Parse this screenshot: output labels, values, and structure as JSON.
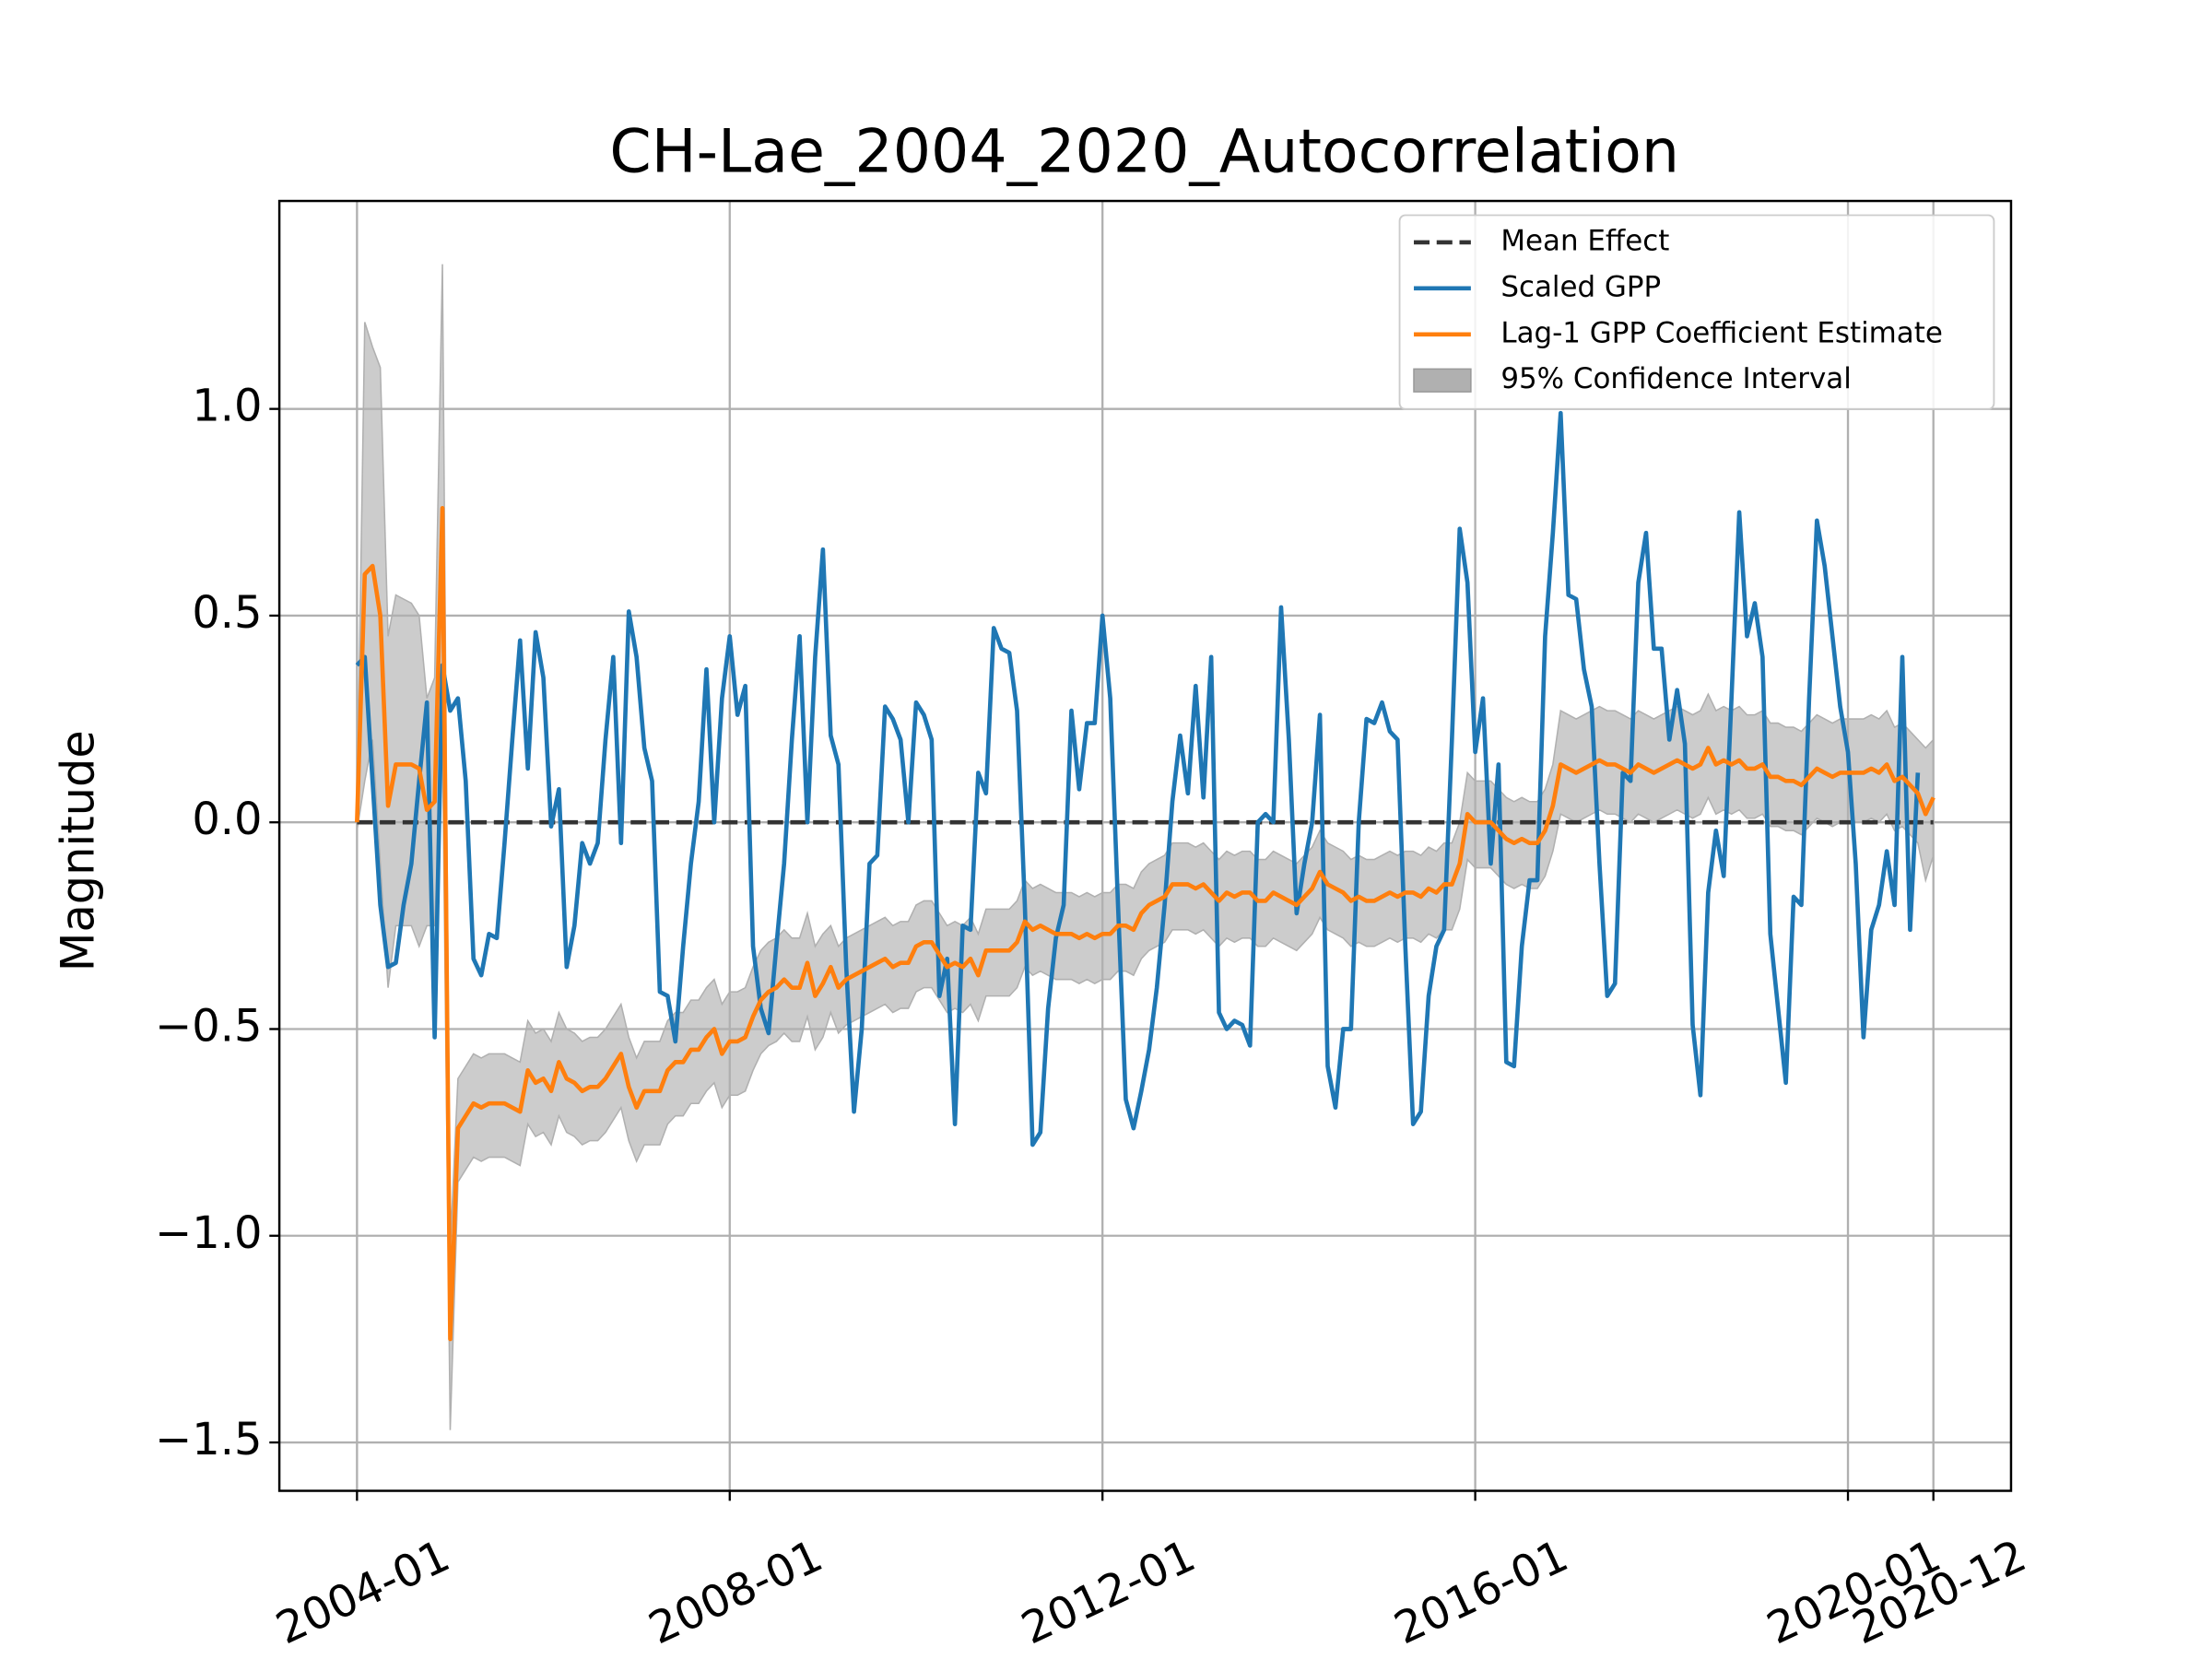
{
  "chart_data": {
    "type": "line",
    "title": "CH-Lae_2004_2020_Autocorrelation",
    "ylabel": "Magnitude",
    "grid": true,
    "legend": "upper right",
    "xlim": [
      "2003-03",
      "2021-10"
    ],
    "xticks": [
      "2004-01",
      "2008-01",
      "2012-01",
      "2016-01",
      "2020-01",
      "2020-12"
    ],
    "ylim": [
      -1.617,
      1.503
    ],
    "yticks": [
      {
        "value": -1.5,
        "label": "−1.5"
      },
      {
        "value": -1,
        "label": "−1.0"
      },
      {
        "value": -0.5,
        "label": "−0.5"
      },
      {
        "value": 0,
        "label": "0.0"
      },
      {
        "value": 0.5,
        "label": "0.5"
      },
      {
        "value": 1,
        "label": "1.0"
      }
    ],
    "x": [
      "2004-01",
      "2004-02",
      "2004-03",
      "2004-04",
      "2004-05",
      "2004-06",
      "2004-07",
      "2004-08",
      "2004-09",
      "2004-10",
      "2004-11",
      "2004-12",
      "2005-01",
      "2005-02",
      "2005-03",
      "2005-04",
      "2005-05",
      "2005-06",
      "2005-07",
      "2005-08",
      "2005-09",
      "2005-10",
      "2005-11",
      "2005-12",
      "2006-01",
      "2006-02",
      "2006-03",
      "2006-04",
      "2006-05",
      "2006-06",
      "2006-07",
      "2006-08",
      "2006-09",
      "2006-10",
      "2006-11",
      "2006-12",
      "2007-01",
      "2007-02",
      "2007-03",
      "2007-04",
      "2007-05",
      "2007-06",
      "2007-07",
      "2007-08",
      "2007-09",
      "2007-10",
      "2007-11",
      "2007-12",
      "2008-01",
      "2008-02",
      "2008-03",
      "2008-04",
      "2008-05",
      "2008-06",
      "2008-07",
      "2008-08",
      "2008-09",
      "2008-10",
      "2008-11",
      "2008-12",
      "2009-01",
      "2009-02",
      "2009-03",
      "2009-04",
      "2009-05",
      "2009-06",
      "2009-07",
      "2009-08",
      "2009-09",
      "2009-10",
      "2009-11",
      "2009-12",
      "2010-01",
      "2010-02",
      "2010-03",
      "2010-04",
      "2010-05",
      "2010-06",
      "2010-07",
      "2010-08",
      "2010-09",
      "2010-10",
      "2010-11",
      "2010-12",
      "2011-01",
      "2011-02",
      "2011-03",
      "2011-04",
      "2011-05",
      "2011-06",
      "2011-07",
      "2011-08",
      "2011-09",
      "2011-10",
      "2011-11",
      "2011-12",
      "2012-01",
      "2012-02",
      "2012-03",
      "2012-04",
      "2012-05",
      "2012-06",
      "2012-07",
      "2012-08",
      "2012-09",
      "2012-10",
      "2012-11",
      "2012-12",
      "2013-01",
      "2013-02",
      "2013-03",
      "2013-04",
      "2013-05",
      "2013-06",
      "2013-07",
      "2013-08",
      "2013-09",
      "2013-10",
      "2013-11",
      "2013-12",
      "2014-01",
      "2014-02",
      "2014-03",
      "2014-04",
      "2014-05",
      "2014-06",
      "2014-07",
      "2014-08",
      "2014-09",
      "2014-10",
      "2014-11",
      "2014-12",
      "2015-01",
      "2015-02",
      "2015-03",
      "2015-04",
      "2015-05",
      "2015-06",
      "2015-07",
      "2015-08",
      "2015-09",
      "2015-10",
      "2015-11",
      "2015-12",
      "2016-01",
      "2016-02",
      "2016-03",
      "2016-04",
      "2016-05",
      "2016-06",
      "2016-07",
      "2016-08",
      "2016-09",
      "2016-10",
      "2016-11",
      "2016-12",
      "2017-01",
      "2017-02",
      "2017-03",
      "2017-04",
      "2017-05",
      "2017-06",
      "2017-07",
      "2017-08",
      "2017-09",
      "2017-10",
      "2017-11",
      "2017-12",
      "2018-01",
      "2018-02",
      "2018-03",
      "2018-04",
      "2018-05",
      "2018-06",
      "2018-07",
      "2018-08",
      "2018-09",
      "2018-10",
      "2018-11",
      "2018-12",
      "2019-01",
      "2019-02",
      "2019-03",
      "2019-04",
      "2019-05",
      "2019-06",
      "2019-07",
      "2019-08",
      "2019-09",
      "2019-10",
      "2019-11",
      "2019-12",
      "2020-01",
      "2020-02",
      "2020-03",
      "2020-04",
      "2020-05",
      "2020-06",
      "2020-07",
      "2020-08",
      "2020-09",
      "2020-10",
      "2020-11",
      "2020-12"
    ],
    "mean_effect": {
      "name": "Mean Effect",
      "color": "#333333",
      "value": 0
    },
    "series": [
      {
        "name": "Scaled GPP",
        "color": "#1f77b4",
        "values": [
          0.38,
          0.4,
          0.1,
          -0.2,
          -0.35,
          -0.34,
          -0.2,
          -0.1,
          0.1,
          0.29,
          -0.52,
          0.38,
          0.27,
          0.3,
          0.1,
          -0.33,
          -0.37,
          -0.27,
          -0.28,
          -0.05,
          0.2,
          0.44,
          0.13,
          0.46,
          0.35,
          -0.01,
          0.08,
          -0.35,
          -0.25,
          -0.05,
          -0.1,
          -0.05,
          0.2,
          0.4,
          -0.05,
          0.51,
          0.4,
          0.18,
          0.1,
          -0.41,
          -0.42,
          -0.53,
          -0.3,
          -0.1,
          0.05,
          0.37,
          0.0,
          0.3,
          0.45,
          0.26,
          0.33,
          -0.3,
          -0.45,
          -0.51,
          -0.3,
          -0.1,
          0.2,
          0.45,
          0.0,
          0.4,
          0.66,
          0.21,
          0.14,
          -0.35,
          -0.7,
          -0.5,
          -0.1,
          -0.08,
          0.28,
          0.25,
          0.2,
          0.0,
          0.29,
          0.26,
          0.2,
          -0.42,
          -0.33,
          -0.73,
          -0.25,
          -0.26,
          0.12,
          0.07,
          0.47,
          0.42,
          0.41,
          0.27,
          -0.2,
          -0.78,
          -0.75,
          -0.45,
          -0.28,
          -0.2,
          0.27,
          0.08,
          0.24,
          0.24,
          0.5,
          0.3,
          -0.2,
          -0.67,
          -0.74,
          -0.65,
          -0.55,
          -0.4,
          -0.2,
          0.05,
          0.21,
          0.07,
          0.33,
          0.06,
          0.4,
          -0.46,
          -0.5,
          -0.48,
          -0.49,
          -0.54,
          0.0,
          0.02,
          0.0,
          0.52,
          0.2,
          -0.22,
          -0.1,
          0.0,
          0.26,
          -0.59,
          -0.69,
          -0.5,
          -0.5,
          0.0,
          0.25,
          0.24,
          0.29,
          0.22,
          0.2,
          -0.3,
          -0.73,
          -0.7,
          -0.42,
          -0.3,
          -0.26,
          0.2,
          0.71,
          0.58,
          0.17,
          0.3,
          -0.1,
          0.14,
          -0.58,
          -0.59,
          -0.3,
          -0.14,
          -0.14,
          0.45,
          0.7,
          0.99,
          0.55,
          0.54,
          0.37,
          0.28,
          -0.1,
          -0.42,
          -0.39,
          0.12,
          0.1,
          0.58,
          0.7,
          0.42,
          0.42,
          0.2,
          0.32,
          0.19,
          -0.49,
          -0.66,
          -0.17,
          -0.02,
          -0.13,
          0.3,
          0.75,
          0.45,
          0.53,
          0.4,
          -0.27,
          -0.45,
          -0.63,
          -0.18,
          -0.2,
          0.3,
          0.73,
          0.62,
          0.45,
          0.28,
          0.17,
          -0.1,
          -0.52,
          -0.26,
          -0.2,
          -0.07,
          -0.2,
          0.4,
          -0.26,
          0.12,
          null,
          null
        ]
      },
      {
        "name": "Lag-1 GPP Coefficient Estimate",
        "color": "#ff7f0e",
        "values": [
          0.0,
          0.6,
          0.62,
          0.5,
          0.04,
          0.14,
          0.14,
          0.14,
          0.13,
          0.03,
          0.05,
          0.76,
          -1.25,
          -0.74,
          -0.71,
          -0.68,
          -0.69,
          -0.68,
          -0.68,
          -0.68,
          -0.69,
          -0.7,
          -0.6,
          -0.63,
          -0.62,
          -0.65,
          -0.58,
          -0.62,
          -0.63,
          -0.65,
          -0.64,
          -0.64,
          -0.62,
          -0.59,
          -0.56,
          -0.64,
          -0.69,
          -0.65,
          -0.65,
          -0.65,
          -0.6,
          -0.58,
          -0.58,
          -0.55,
          -0.55,
          -0.52,
          -0.5,
          -0.56,
          -0.53,
          -0.53,
          -0.52,
          -0.47,
          -0.43,
          -0.41,
          -0.4,
          -0.38,
          -0.4,
          -0.4,
          -0.34,
          -0.42,
          -0.39,
          -0.35,
          -0.4,
          -0.38,
          -0.37,
          -0.36,
          -0.35,
          -0.34,
          -0.33,
          -0.35,
          -0.34,
          -0.34,
          -0.3,
          -0.29,
          -0.29,
          -0.32,
          -0.35,
          -0.34,
          -0.35,
          -0.33,
          -0.37,
          -0.31,
          -0.31,
          -0.31,
          -0.31,
          -0.29,
          -0.24,
          -0.26,
          -0.25,
          -0.26,
          -0.27,
          -0.27,
          -0.27,
          -0.28,
          -0.27,
          -0.28,
          -0.27,
          -0.27,
          -0.25,
          -0.25,
          -0.26,
          -0.22,
          -0.2,
          -0.19,
          -0.18,
          -0.15,
          -0.15,
          -0.15,
          -0.16,
          -0.15,
          -0.17,
          -0.19,
          -0.17,
          -0.18,
          -0.17,
          -0.17,
          -0.19,
          -0.19,
          -0.17,
          -0.18,
          -0.19,
          -0.2,
          -0.18,
          -0.16,
          -0.12,
          -0.15,
          -0.16,
          -0.17,
          -0.19,
          -0.18,
          -0.19,
          -0.19,
          -0.18,
          -0.17,
          -0.18,
          -0.17,
          -0.17,
          -0.18,
          -0.16,
          -0.17,
          -0.15,
          -0.15,
          -0.1,
          0.02,
          0.0,
          0.0,
          0.0,
          -0.02,
          -0.04,
          -0.05,
          -0.04,
          -0.05,
          -0.05,
          -0.02,
          0.04,
          0.14,
          0.13,
          0.12,
          0.13,
          0.14,
          0.15,
          0.14,
          0.14,
          0.13,
          0.12,
          0.14,
          0.13,
          0.12,
          0.13,
          0.14,
          0.15,
          0.14,
          0.13,
          0.14,
          0.18,
          0.14,
          0.15,
          0.14,
          0.15,
          0.13,
          0.13,
          0.14,
          0.11,
          0.11,
          0.1,
          0.1,
          0.09,
          0.11,
          0.13,
          0.12,
          0.11,
          0.12,
          0.12,
          0.12,
          0.12,
          0.13,
          0.12,
          0.14,
          0.1,
          0.11,
          0.09,
          0.07,
          0.02,
          0.06
        ]
      }
    ],
    "confidence_band": {
      "name": "95% Confidence Interval",
      "color": "#b0b0b0",
      "lower": [
        -0.02,
        0.1,
        0.2,
        -0.1,
        -0.4,
        -0.25,
        -0.25,
        -0.25,
        -0.3,
        -0.25,
        -0.25,
        0.2,
        -1.47,
        -0.87,
        -0.84,
        -0.81,
        -0.82,
        -0.81,
        -0.81,
        -0.81,
        -0.82,
        -0.83,
        -0.73,
        -0.76,
        -0.75,
        -0.78,
        -0.71,
        -0.75,
        -0.76,
        -0.78,
        -0.77,
        -0.77,
        -0.75,
        -0.72,
        -0.69,
        -0.77,
        -0.82,
        -0.78,
        -0.78,
        -0.78,
        -0.73,
        -0.71,
        -0.71,
        -0.68,
        -0.68,
        -0.65,
        -0.63,
        -0.69,
        -0.66,
        -0.66,
        -0.65,
        -0.6,
        -0.56,
        -0.54,
        -0.53,
        -0.51,
        -0.53,
        -0.53,
        -0.47,
        -0.55,
        -0.52,
        -0.46,
        -0.51,
        -0.49,
        -0.48,
        -0.47,
        -0.46,
        -0.45,
        -0.44,
        -0.46,
        -0.45,
        -0.45,
        -0.41,
        -0.4,
        -0.4,
        -0.43,
        -0.46,
        -0.45,
        -0.46,
        -0.44,
        -0.48,
        -0.42,
        -0.42,
        -0.42,
        -0.42,
        -0.4,
        -0.35,
        -0.37,
        -0.36,
        -0.37,
        -0.38,
        -0.38,
        -0.38,
        -0.39,
        -0.38,
        -0.39,
        -0.38,
        -0.38,
        -0.36,
        -0.36,
        -0.37,
        -0.33,
        -0.31,
        -0.3,
        -0.29,
        -0.26,
        -0.26,
        -0.26,
        -0.27,
        -0.26,
        -0.28,
        -0.3,
        -0.28,
        -0.29,
        -0.28,
        -0.28,
        -0.3,
        -0.3,
        -0.28,
        -0.29,
        -0.3,
        -0.31,
        -0.29,
        -0.27,
        -0.23,
        -0.26,
        -0.27,
        -0.28,
        -0.3,
        -0.29,
        -0.3,
        -0.3,
        -0.29,
        -0.28,
        -0.29,
        -0.28,
        -0.28,
        -0.29,
        -0.27,
        -0.28,
        -0.26,
        -0.26,
        -0.21,
        -0.09,
        -0.11,
        -0.11,
        -0.11,
        -0.13,
        -0.15,
        -0.16,
        -0.15,
        -0.16,
        -0.16,
        -0.13,
        -0.07,
        0.02,
        0.01,
        0.0,
        0.01,
        0.02,
        0.03,
        0.02,
        0.02,
        0.01,
        0.0,
        0.02,
        0.01,
        0.0,
        0.01,
        0.02,
        0.03,
        0.02,
        0.01,
        0.02,
        0.06,
        0.02,
        0.03,
        0.02,
        0.03,
        0.01,
        0.01,
        0.02,
        -0.01,
        -0.01,
        -0.02,
        -0.02,
        -0.03,
        -0.01,
        0.01,
        0.0,
        -0.01,
        0.0,
        0.0,
        0.0,
        0.0,
        0.01,
        0.0,
        0.02,
        -0.02,
        -0.01,
        -0.03,
        -0.05,
        -0.14,
        -0.08
      ],
      "upper": [
        0.02,
        1.21,
        1.15,
        1.1,
        0.45,
        0.55,
        0.54,
        0.53,
        0.5,
        0.3,
        0.35,
        1.35,
        -1.03,
        -0.62,
        -0.59,
        -0.56,
        -0.57,
        -0.56,
        -0.56,
        -0.56,
        -0.57,
        -0.58,
        -0.48,
        -0.51,
        -0.5,
        -0.53,
        -0.46,
        -0.5,
        -0.51,
        -0.53,
        -0.52,
        -0.52,
        -0.5,
        -0.47,
        -0.44,
        -0.52,
        -0.57,
        -0.53,
        -0.53,
        -0.53,
        -0.48,
        -0.46,
        -0.46,
        -0.43,
        -0.43,
        -0.4,
        -0.38,
        -0.44,
        -0.41,
        -0.41,
        -0.4,
        -0.35,
        -0.31,
        -0.29,
        -0.28,
        -0.26,
        -0.28,
        -0.28,
        -0.22,
        -0.3,
        -0.27,
        -0.25,
        -0.3,
        -0.28,
        -0.27,
        -0.26,
        -0.25,
        -0.24,
        -0.23,
        -0.25,
        -0.24,
        -0.24,
        -0.2,
        -0.19,
        -0.19,
        -0.22,
        -0.25,
        -0.24,
        -0.25,
        -0.23,
        -0.27,
        -0.21,
        -0.21,
        -0.21,
        -0.21,
        -0.19,
        -0.14,
        -0.16,
        -0.15,
        -0.16,
        -0.17,
        -0.17,
        -0.17,
        -0.18,
        -0.17,
        -0.18,
        -0.17,
        -0.17,
        -0.15,
        -0.15,
        -0.16,
        -0.12,
        -0.1,
        -0.09,
        -0.08,
        -0.05,
        -0.05,
        -0.05,
        -0.06,
        -0.05,
        -0.07,
        -0.09,
        -0.07,
        -0.08,
        -0.07,
        -0.07,
        -0.09,
        -0.09,
        -0.07,
        -0.08,
        -0.09,
        -0.1,
        -0.08,
        -0.06,
        -0.02,
        -0.05,
        -0.06,
        -0.07,
        -0.09,
        -0.08,
        -0.09,
        -0.09,
        -0.08,
        -0.07,
        -0.08,
        -0.07,
        -0.07,
        -0.08,
        -0.06,
        -0.07,
        -0.05,
        -0.05,
        0.0,
        0.12,
        0.1,
        0.1,
        0.1,
        0.08,
        0.06,
        0.05,
        0.06,
        0.05,
        0.05,
        0.08,
        0.14,
        0.27,
        0.26,
        0.25,
        0.26,
        0.27,
        0.28,
        0.27,
        0.27,
        0.26,
        0.25,
        0.27,
        0.26,
        0.25,
        0.26,
        0.27,
        0.28,
        0.27,
        0.26,
        0.27,
        0.31,
        0.27,
        0.28,
        0.27,
        0.28,
        0.26,
        0.26,
        0.27,
        0.24,
        0.24,
        0.23,
        0.23,
        0.22,
        0.24,
        0.26,
        0.25,
        0.24,
        0.25,
        0.25,
        0.25,
        0.25,
        0.26,
        0.25,
        0.27,
        0.23,
        0.24,
        0.22,
        0.2,
        0.18,
        0.2
      ]
    }
  }
}
